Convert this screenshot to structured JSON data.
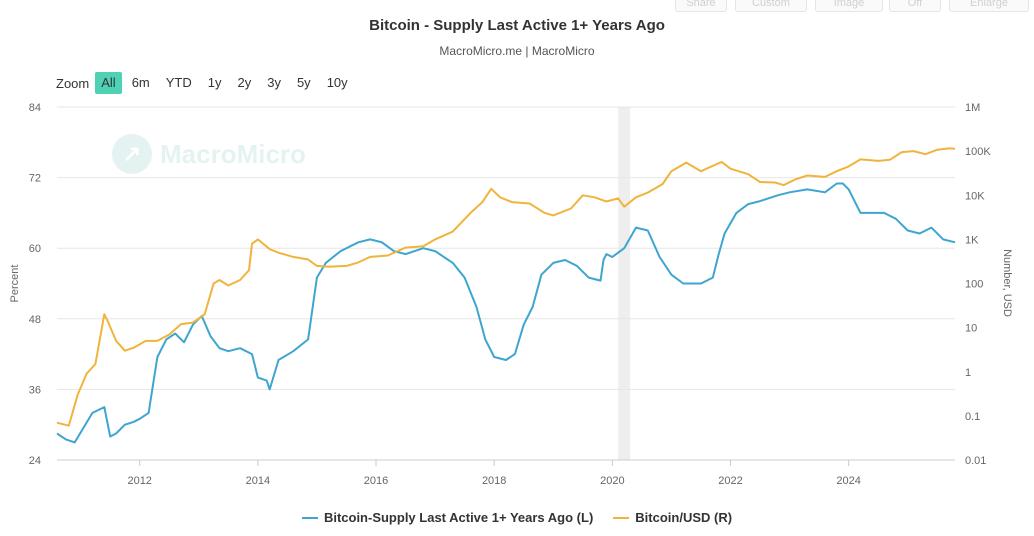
{
  "toolbar": {
    "buttons": [
      "Share",
      "Custom",
      "Image",
      "Off",
      "Enlarge"
    ]
  },
  "title": "Bitcoin - Supply Last Active 1+ Years Ago",
  "subtitle": "MacroMicro.me | MacroMicro",
  "watermark": "MacroMicro",
  "zoom": {
    "label": "Zoom",
    "options": [
      "All",
      "6m",
      "YTD",
      "1y",
      "2y",
      "3y",
      "5y",
      "10y"
    ],
    "selected": "All"
  },
  "colors": {
    "supply": "#3da5d0",
    "price": "#f0b43c",
    "grid": "#e6e6e6",
    "shade": "#eeeeee",
    "zoom_active": "#4fd1b6"
  },
  "legend": {
    "supply_label": "Bitcoin-Supply Last Active 1+ Years Ago (L)",
    "price_label": "Bitcoin/USD (R)"
  },
  "chart_data": {
    "type": "line",
    "title": "Bitcoin - Supply Last Active 1+ Years Ago",
    "ylabel_left": "Percent",
    "ylabel_right": "Number, USD",
    "x_ticks": [
      "2012",
      "2014",
      "2016",
      "2018",
      "2020",
      "2022",
      "2024"
    ],
    "xlim": [
      2010.6,
      2025.8
    ],
    "left_axis": {
      "ticks": [
        "24",
        "36",
        "48",
        "60",
        "72",
        "84"
      ],
      "ylim": [
        24,
        84
      ]
    },
    "right_axis": {
      "ticks": [
        "0.01",
        "0.1",
        "1",
        "10",
        "100",
        "1K",
        "10K",
        "100K",
        "1M"
      ],
      "scale": "log",
      "ylim": [
        0.01,
        1000000
      ]
    },
    "shaded_region": [
      2020.1,
      2020.3
    ],
    "grid": true,
    "legend_position": "bottom",
    "series": [
      {
        "name": "Bitcoin-Supply Last Active 1+ Years Ago (L)",
        "axis": "left",
        "x": [
          2010.6,
          2010.75,
          2010.9,
          2011.05,
          2011.2,
          2011.4,
          2011.5,
          2011.6,
          2011.75,
          2011.9,
          2012.0,
          2012.15,
          2012.3,
          2012.45,
          2012.6,
          2012.75,
          2012.9,
          2013.05,
          2013.2,
          2013.35,
          2013.5,
          2013.7,
          2013.9,
          2014.0,
          2014.15,
          2014.2,
          2014.35,
          2014.6,
          2014.85,
          2015.0,
          2015.15,
          2015.4,
          2015.7,
          2015.9,
          2016.1,
          2016.3,
          2016.5,
          2016.8,
          2017.0,
          2017.3,
          2017.5,
          2017.7,
          2017.85,
          2018.0,
          2018.2,
          2018.35,
          2018.5,
          2018.65,
          2018.8,
          2019.0,
          2019.2,
          2019.4,
          2019.6,
          2019.8,
          2019.85,
          2019.9,
          2020.0,
          2020.2,
          2020.4,
          2020.6,
          2020.8,
          2021.0,
          2021.2,
          2021.5,
          2021.7,
          2021.8,
          2021.9,
          2022.1,
          2022.3,
          2022.5,
          2022.8,
          2023.0,
          2023.3,
          2023.6,
          2023.8,
          2023.9,
          2024.0,
          2024.2,
          2024.4,
          2024.6,
          2024.8,
          2025.0,
          2025.2,
          2025.4,
          2025.6,
          2025.8
        ],
        "y": [
          28.5,
          27.5,
          27.0,
          29.5,
          32.0,
          33.0,
          28.0,
          28.5,
          30.0,
          30.5,
          31.0,
          32.0,
          41.5,
          44.5,
          45.5,
          44.0,
          47.0,
          48.5,
          45.0,
          43.0,
          42.5,
          43.0,
          42.0,
          38.0,
          37.5,
          36.0,
          41.0,
          42.5,
          44.5,
          55.0,
          57.5,
          59.5,
          61.0,
          61.5,
          61.0,
          59.5,
          59.0,
          60.0,
          59.5,
          57.5,
          55.0,
          50.0,
          44.5,
          41.5,
          41.0,
          42.0,
          47.0,
          50.0,
          55.5,
          57.5,
          58.0,
          57.0,
          55.0,
          54.5,
          58.0,
          59.0,
          58.5,
          60.0,
          63.5,
          63.0,
          58.5,
          55.5,
          54.0,
          54.0,
          55.0,
          59.0,
          62.5,
          66.0,
          67.5,
          68.0,
          69.0,
          69.5,
          70.0,
          69.5,
          71.0,
          71.0,
          70.0,
          66.0,
          66.0,
          66.0,
          65.0,
          63.0,
          62.5,
          63.5,
          61.5,
          61.0
        ]
      },
      {
        "name": "Bitcoin/USD (R)",
        "axis": "right",
        "x": [
          2010.6,
          2010.8,
          2010.95,
          2011.1,
          2011.25,
          2011.4,
          2011.45,
          2011.6,
          2011.75,
          2011.9,
          2012.1,
          2012.3,
          2012.5,
          2012.7,
          2012.9,
          2013.1,
          2013.25,
          2013.35,
          2013.5,
          2013.7,
          2013.85,
          2013.9,
          2014.0,
          2014.2,
          2014.35,
          2014.6,
          2014.85,
          2015.0,
          2015.2,
          2015.5,
          2015.7,
          2015.9,
          2016.2,
          2016.5,
          2016.8,
          2017.0,
          2017.3,
          2017.6,
          2017.8,
          2017.95,
          2018.1,
          2018.3,
          2018.6,
          2018.85,
          2019.0,
          2019.3,
          2019.5,
          2019.7,
          2019.9,
          2020.1,
          2020.2,
          2020.4,
          2020.6,
          2020.85,
          2021.0,
          2021.25,
          2021.5,
          2021.85,
          2022.0,
          2022.3,
          2022.5,
          2022.75,
          2022.9,
          2023.1,
          2023.3,
          2023.6,
          2023.8,
          2024.0,
          2024.2,
          2024.5,
          2024.7,
          2024.9,
          2025.1,
          2025.3,
          2025.5,
          2025.7,
          2025.8
        ],
        "y": [
          0.07,
          0.06,
          0.3,
          0.9,
          1.5,
          20,
          15,
          5,
          3,
          3.5,
          5,
          5,
          7,
          12,
          13,
          20,
          100,
          120,
          90,
          120,
          200,
          800,
          1000,
          600,
          500,
          400,
          350,
          250,
          240,
          250,
          300,
          400,
          430,
          650,
          700,
          1000,
          1500,
          4000,
          7000,
          14000,
          9000,
          7000,
          6500,
          4000,
          3500,
          5000,
          10000,
          9000,
          7200,
          8500,
          5500,
          9000,
          11500,
          18000,
          35000,
          55000,
          35000,
          57000,
          40000,
          30000,
          20000,
          19500,
          17000,
          23000,
          28000,
          26000,
          35000,
          45000,
          65000,
          60000,
          64000,
          95000,
          100000,
          85000,
          108000,
          115000,
          113000
        ]
      }
    ]
  }
}
